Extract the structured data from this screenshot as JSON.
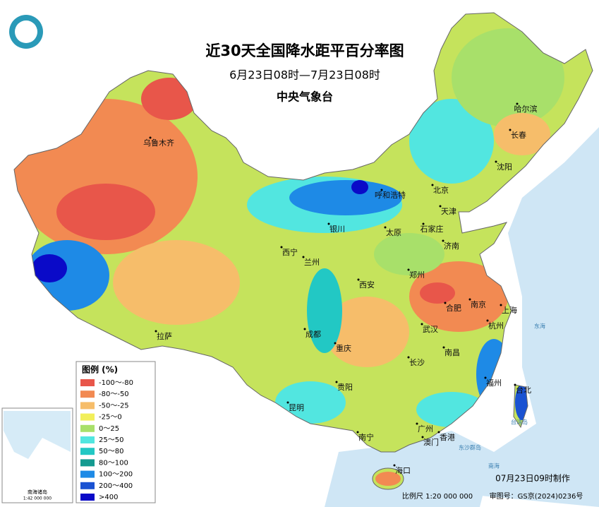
{
  "title": "近30天全国降水距平百分率图",
  "subtitle": "6月23日08时—7月23日08时",
  "agency": "中央气象台",
  "legend": {
    "title": "图例 (%)",
    "items": [
      {
        "label": "-100～-80",
        "color": "#e8564a"
      },
      {
        "label": "-80～-50",
        "color": "#f28a52"
      },
      {
        "label": "-50～-25",
        "color": "#f6bd6a"
      },
      {
        "label": "-25～0",
        "color": "#f2ef5a"
      },
      {
        "label": "0～25",
        "color": "#a8e06a"
      },
      {
        "label": "25～50",
        "color": "#52e6e0"
      },
      {
        "label": "50～80",
        "color": "#22c8c4"
      },
      {
        "label": "80～100",
        "color": "#149a90"
      },
      {
        "label": "100～200",
        "color": "#1e8ae6"
      },
      {
        "label": "200～400",
        "color": "#1a52d2"
      },
      {
        "label": ">400",
        "color": "#0a0ac8"
      }
    ]
  },
  "cities": [
    "乌鲁木齐",
    "哈尔滨",
    "长春",
    "沈阳",
    "呼和浩特",
    "北京",
    "天津",
    "银川",
    "太原",
    "石家庄",
    "西宁",
    "兰州",
    "济南",
    "郑州",
    "西安",
    "合肥",
    "南京",
    "上海",
    "成都",
    "武汉",
    "杭州",
    "拉萨",
    "重庆",
    "南昌",
    "长沙",
    "贵阳",
    "福州",
    "台北",
    "昆明",
    "广州",
    "南宁",
    "澳门",
    "香港",
    "海口"
  ],
  "seas": [
    "东海",
    "台湾岛",
    "东沙群岛",
    "南海"
  ],
  "inset": {
    "title": "南海诸岛",
    "scale": "1:42 000 000"
  },
  "footer": {
    "made": "07月23日09时制作",
    "scale": "比例尺 1:20 000 000",
    "approval": "审图号：GS京(2024)0236号"
  }
}
